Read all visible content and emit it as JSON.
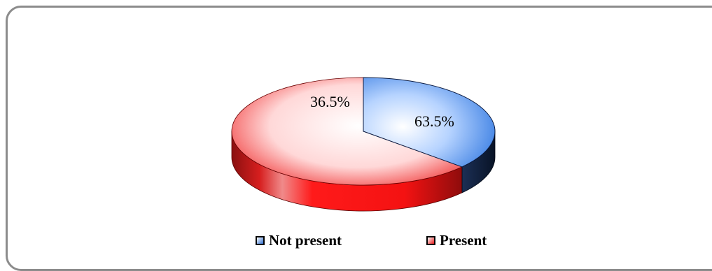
{
  "chart_data": {
    "type": "pie",
    "title": "",
    "categories": [
      "Not present",
      "Present"
    ],
    "values": [
      36.5,
      63.5
    ],
    "data_labels": [
      "36.5%",
      "63.5%"
    ],
    "colors": {
      "Not present": "#2f6fd0",
      "Present": "#e8191a"
    },
    "three_d": true,
    "legend_position": "bottom"
  }
}
